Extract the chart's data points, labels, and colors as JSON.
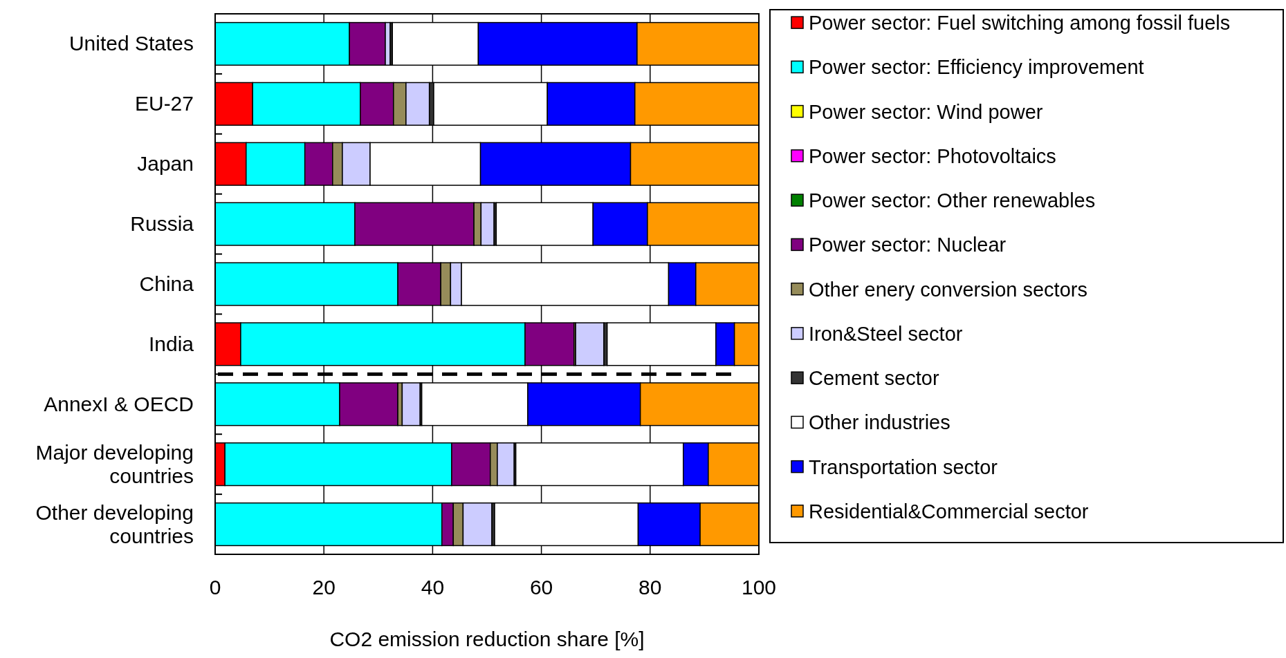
{
  "chart_data": {
    "type": "bar",
    "orientation": "horizontal",
    "stacked": true,
    "xlabel": "CO2 emission reduction share [%]",
    "categories": [
      "United States",
      "EU-27",
      "Japan",
      "Russia",
      "China",
      "India",
      "AnnexI & OECD",
      "Major developing countries",
      "Other developing countries"
    ],
    "series": [
      {
        "name": "Power sector: Fuel switching among fossil fuels",
        "color": "#ff0000",
        "values": [
          0,
          6.9,
          5.7,
          0,
          0,
          4.7,
          0,
          1.8,
          0
        ]
      },
      {
        "name": "Power sector: Efficiency improvement",
        "color": "#00ffff",
        "values": [
          24.7,
          19.8,
          10.8,
          25.7,
          33.6,
          52.3,
          22.9,
          41.7,
          41.7
        ]
      },
      {
        "name": "Power sector: Wind power",
        "color": "#ffff00",
        "values": [
          0,
          0,
          0,
          0,
          0,
          0,
          0,
          0,
          0
        ]
      },
      {
        "name": "Power sector: Photovoltaics",
        "color": "#ff00ff",
        "values": [
          0,
          0,
          0,
          0,
          0,
          0,
          0,
          0,
          0
        ]
      },
      {
        "name": "Power sector: Other renewables",
        "color": "#008000",
        "values": [
          0,
          0,
          0,
          0,
          0,
          0,
          0,
          0,
          0
        ]
      },
      {
        "name": "Power sector: Nuclear",
        "color": "#800080",
        "values": [
          6.6,
          6.1,
          5.1,
          21.9,
          7.9,
          9.0,
          10.7,
          7.1,
          2.1
        ]
      },
      {
        "name": "Other enery conversion sectors",
        "color": "#968c5a",
        "values": [
          0,
          2.3,
          1.8,
          1.3,
          1.8,
          0.3,
          0.8,
          1.3,
          1.8
        ]
      },
      {
        "name": "Iron&Steel sector",
        "color": "#ccccff",
        "values": [
          0.9,
          4.3,
          5.1,
          2.4,
          2.0,
          5.2,
          3.3,
          3.1,
          5.3
        ]
      },
      {
        "name": "Cement sector",
        "color": "#333333",
        "values": [
          0.4,
          0.8,
          0,
          0.4,
          0,
          0.6,
          0.3,
          0.3,
          0.5
        ]
      },
      {
        "name": "Other industries",
        "color": "#ffffff",
        "values": [
          15.8,
          20.9,
          20.3,
          17.8,
          38.1,
          20.0,
          19.5,
          30.8,
          26.4
        ]
      },
      {
        "name": "Transportation sector",
        "color": "#0000ff",
        "values": [
          29.2,
          16.1,
          27.6,
          10.0,
          5.0,
          3.4,
          20.7,
          4.6,
          11.4
        ]
      },
      {
        "name": "Residential&Commercial sector",
        "color": "#ff9900",
        "values": [
          22.4,
          22.8,
          23.6,
          20.5,
          11.6,
          4.5,
          21.8,
          9.3,
          10.8
        ]
      }
    ],
    "xlim": [
      0,
      100
    ],
    "xticks": [
      0,
      20,
      40,
      60,
      80,
      100
    ],
    "grid": "x",
    "legend": "right"
  }
}
